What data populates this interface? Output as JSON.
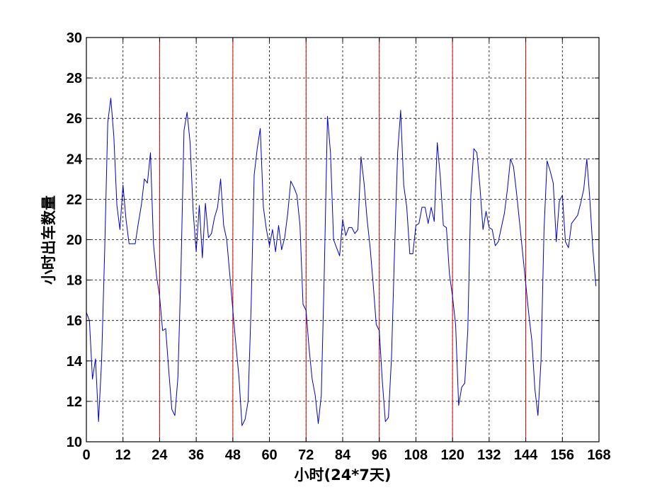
{
  "chart_data": {
    "type": "line",
    "title": "",
    "xlabel": "小时(24*7天)",
    "ylabel": "小时出车数量",
    "xlim": [
      0,
      168
    ],
    "ylim": [
      10,
      30
    ],
    "xticks": [
      0,
      12,
      24,
      36,
      48,
      60,
      72,
      84,
      96,
      108,
      120,
      132,
      144,
      156,
      168
    ],
    "yticks": [
      10,
      12,
      14,
      16,
      18,
      20,
      22,
      24,
      26,
      28,
      30
    ],
    "grid": true,
    "grid_style": "dashed",
    "day_boundaries": [
      24,
      48,
      72,
      96,
      120,
      144,
      168
    ],
    "colors": {
      "series": "#0000cc",
      "boundary": "#dd0000",
      "grid": "#000000"
    },
    "series": [
      {
        "x": [
          0,
          1,
          2,
          3,
          4,
          5,
          6,
          7,
          8,
          9,
          10,
          11,
          12,
          13,
          14,
          15,
          16,
          17,
          18,
          19,
          20,
          21,
          22,
          23,
          24,
          25,
          26,
          27,
          28,
          29,
          30,
          31,
          32,
          33,
          34,
          35,
          36,
          37,
          38,
          39,
          40,
          41,
          42,
          43,
          44,
          45,
          46,
          47,
          48,
          49,
          50,
          51,
          52,
          53,
          54,
          55,
          56,
          57,
          58,
          59,
          60,
          61,
          62,
          63,
          64,
          65,
          66,
          67,
          68,
          69,
          70,
          71,
          72,
          73,
          74,
          75,
          76,
          77,
          78,
          79,
          80,
          81,
          82,
          83,
          84,
          85,
          86,
          87,
          88,
          89,
          90,
          91,
          92,
          93,
          94,
          95,
          96,
          97,
          98,
          99,
          100,
          101,
          102,
          103,
          104,
          105,
          106,
          107,
          108,
          109,
          110,
          111,
          112,
          113,
          114,
          115,
          116,
          117,
          118,
          119,
          120,
          121,
          122,
          123,
          124,
          125,
          126,
          127,
          128,
          129,
          130,
          131,
          132,
          133,
          134,
          135,
          136,
          137,
          138,
          139,
          140,
          141,
          142,
          143,
          144,
          145,
          146,
          147,
          148,
          149,
          150,
          151,
          152,
          153,
          154,
          155,
          156,
          157,
          158,
          159,
          160,
          161,
          162,
          163,
          164,
          165,
          166,
          167
        ],
        "values": [
          16.4,
          16.0,
          13.1,
          14.1,
          11.0,
          14.0,
          19.5,
          25.8,
          27.0,
          25.1,
          21.7,
          20.5,
          22.7,
          21.0,
          19.8,
          19.8,
          19.8,
          20.8,
          21.7,
          23.0,
          22.8,
          24.3,
          19.8,
          18.2,
          17.2,
          15.5,
          15.6,
          13.5,
          11.6,
          11.3,
          13.2,
          18.5,
          25.4,
          26.3,
          24.8,
          21.4,
          19.4,
          21.7,
          19.1,
          21.8,
          20.1,
          20.3,
          21.1,
          21.6,
          23.0,
          20.7,
          20.0,
          18.3,
          16.5,
          14.8,
          13.2,
          10.8,
          11.1,
          12.0,
          16.7,
          23.2,
          24.5,
          25.5,
          21.6,
          20.5,
          19.7,
          20.5,
          19.4,
          20.7,
          19.5,
          20.1,
          21.3,
          22.9,
          22.6,
          22.2,
          20.7,
          16.8,
          16.5,
          14.6,
          13.1,
          12.3,
          10.9,
          12.3,
          18.5,
          26.1,
          24.3,
          20.0,
          19.6,
          19.2,
          21.0,
          20.2,
          20.6,
          20.6,
          20.3,
          20.5,
          24.1,
          22.8,
          21.0,
          19.6,
          17.8,
          15.8,
          15.5,
          13.0,
          11.0,
          11.2,
          14.2,
          19.5,
          24.3,
          26.4,
          22.7,
          21.6,
          19.3,
          19.3,
          20.7,
          20.8,
          21.6,
          21.6,
          20.8,
          21.6,
          20.9,
          24.8,
          23.1,
          20.7,
          20.6,
          18.3,
          17.2,
          15.8,
          11.8,
          12.7,
          12.9,
          15.5,
          22.2,
          24.5,
          24.3,
          22.6,
          20.5,
          21.4,
          20.6,
          20.5,
          19.7,
          19.9,
          20.6,
          21.3,
          22.5,
          24.0,
          23.6,
          22.3,
          20.8,
          19.3,
          17.8,
          16.3,
          15.0,
          12.6,
          11.3,
          14.0,
          20.5,
          23.9,
          23.4,
          22.8,
          19.9,
          21.9,
          22.2,
          19.9,
          19.6,
          20.8,
          21.0,
          21.2,
          21.8,
          22.5,
          24.0,
          22.0,
          19.5,
          17.7
        ]
      }
    ]
  }
}
